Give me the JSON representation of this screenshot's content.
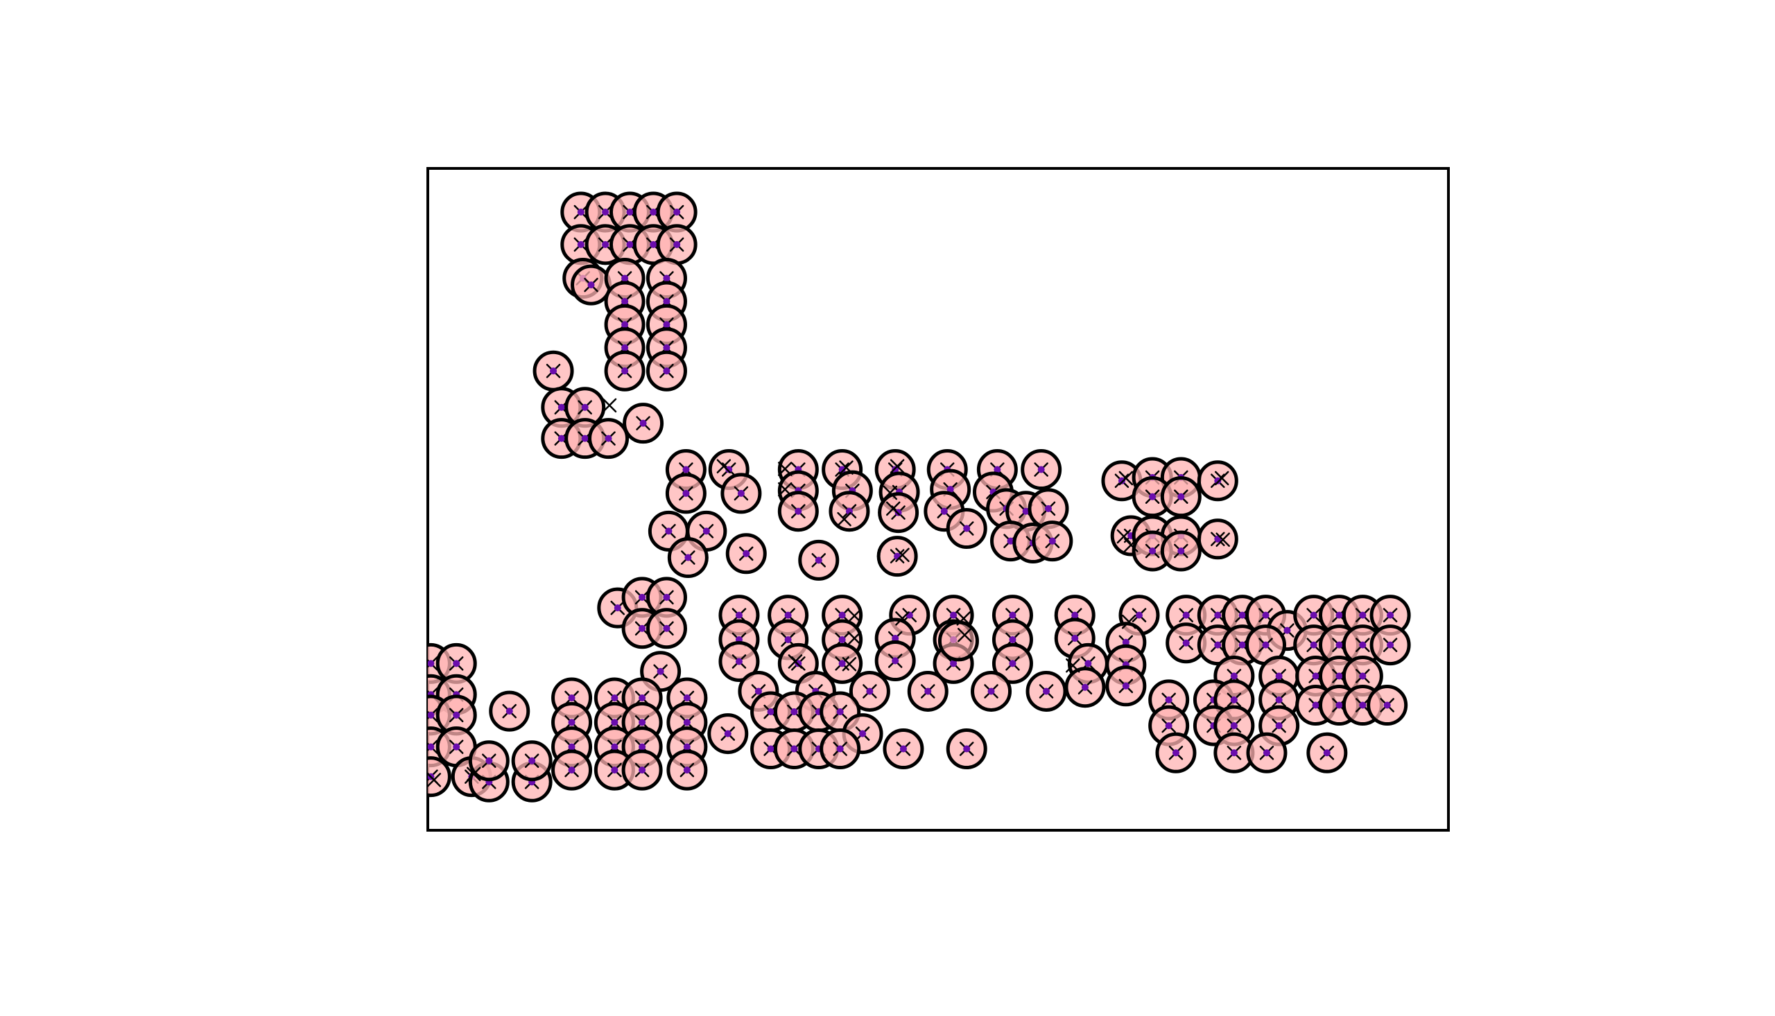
{
  "chart_data": {
    "type": "scatter",
    "title": "",
    "xlabel": "",
    "ylabel": "",
    "xlim": [
      0,
      100
    ],
    "ylim": [
      0,
      100
    ],
    "axes_visible": false,
    "grid": false,
    "legend": "none",
    "colors": {
      "circle_fill": "#ffb3b3",
      "circle_edge": "#000000",
      "cross": "#000000",
      "center": "#6a0dad",
      "frame": "#000000"
    },
    "series": [
      {
        "marker": "circle+cross",
        "points": [
          [
            15.0,
            93.4
          ],
          [
            17.4,
            93.4
          ],
          [
            19.8,
            93.4
          ],
          [
            22.1,
            93.4
          ],
          [
            24.4,
            93.4
          ],
          [
            15.0,
            88.5
          ],
          [
            17.4,
            88.5
          ],
          [
            19.8,
            88.5
          ],
          [
            22.1,
            88.5
          ],
          [
            24.4,
            88.5
          ],
          [
            15.2,
            83.4
          ],
          [
            16.0,
            82.4
          ],
          [
            19.3,
            83.4
          ],
          [
            23.4,
            83.4
          ],
          [
            19.3,
            79.9
          ],
          [
            23.4,
            79.9
          ],
          [
            19.3,
            76.4
          ],
          [
            23.4,
            76.4
          ],
          [
            19.3,
            72.9
          ],
          [
            23.4,
            72.9
          ],
          [
            19.3,
            69.4
          ],
          [
            23.4,
            69.4
          ],
          [
            12.3,
            69.4
          ],
          [
            13.1,
            63.9
          ],
          [
            15.4,
            63.9
          ],
          [
            21.1,
            61.5
          ],
          [
            13.1,
            59.2
          ],
          [
            15.4,
            59.2
          ],
          [
            17.7,
            59.2
          ],
          [
            25.3,
            54.5
          ],
          [
            29.5,
            54.5
          ],
          [
            36.3,
            54.5
          ],
          [
            40.6,
            54.5
          ],
          [
            45.8,
            54.5
          ],
          [
            50.9,
            54.5
          ],
          [
            55.8,
            54.5
          ],
          [
            60.1,
            54.5
          ],
          [
            25.3,
            50.9
          ],
          [
            30.7,
            50.9
          ],
          [
            36.3,
            51.3
          ],
          [
            41.6,
            51.3
          ],
          [
            46.2,
            51.1
          ],
          [
            51.2,
            51.5
          ],
          [
            55.4,
            51.1
          ],
          [
            36.3,
            48.2
          ],
          [
            41.3,
            48.2
          ],
          [
            46.1,
            48.0
          ],
          [
            50.6,
            48.2
          ],
          [
            56.7,
            48.6
          ],
          [
            58.6,
            48.2
          ],
          [
            60.8,
            48.6
          ],
          [
            23.6,
            45.2
          ],
          [
            27.3,
            45.2
          ],
          [
            52.8,
            45.6
          ],
          [
            57.1,
            43.7
          ],
          [
            59.3,
            43.4
          ],
          [
            61.2,
            43.7
          ],
          [
            25.5,
            41.2
          ],
          [
            31.2,
            41.8
          ],
          [
            38.3,
            40.8
          ],
          [
            46.0,
            41.4
          ],
          [
            68.0,
            52.8
          ],
          [
            71.0,
            53.3
          ],
          [
            73.8,
            53.3
          ],
          [
            77.4,
            52.8
          ],
          [
            71.0,
            50.4
          ],
          [
            73.8,
            50.4
          ],
          [
            68.9,
            44.5
          ],
          [
            71.0,
            44.5
          ],
          [
            73.8,
            44.5
          ],
          [
            77.4,
            44.0
          ],
          [
            71.0,
            42.2
          ],
          [
            73.8,
            42.2
          ],
          [
            18.6,
            33.6
          ],
          [
            21.0,
            35.2
          ],
          [
            23.4,
            35.2
          ],
          [
            21.0,
            30.5
          ],
          [
            23.4,
            30.5
          ],
          [
            30.5,
            32.5
          ],
          [
            35.3,
            32.5
          ],
          [
            40.6,
            32.5
          ],
          [
            47.2,
            32.5
          ],
          [
            51.5,
            32.5
          ],
          [
            57.3,
            32.5
          ],
          [
            63.4,
            32.5
          ],
          [
            69.7,
            32.5
          ],
          [
            30.5,
            28.8
          ],
          [
            35.3,
            28.8
          ],
          [
            40.6,
            28.8
          ],
          [
            45.8,
            29.0
          ],
          [
            51.5,
            28.8
          ],
          [
            57.3,
            28.8
          ],
          [
            63.4,
            29.0
          ],
          [
            68.4,
            28.4
          ],
          [
            30.5,
            25.5
          ],
          [
            36.3,
            25.2
          ],
          [
            40.6,
            25.2
          ],
          [
            45.8,
            25.6
          ],
          [
            51.5,
            25.2
          ],
          [
            57.3,
            25.2
          ],
          [
            64.7,
            25.2
          ],
          [
            68.4,
            25.0
          ],
          [
            22.8,
            24.0
          ],
          [
            32.4,
            21.0
          ],
          [
            38.0,
            21.0
          ],
          [
            43.3,
            21.0
          ],
          [
            49.0,
            21.0
          ],
          [
            55.2,
            21.0
          ],
          [
            60.6,
            21.0
          ],
          [
            64.4,
            21.6
          ],
          [
            68.4,
            21.8
          ],
          [
            74.3,
            32.5
          ],
          [
            77.4,
            32.5
          ],
          [
            79.8,
            32.5
          ],
          [
            82.1,
            32.5
          ],
          [
            84.2,
            30.2
          ],
          [
            86.8,
            32.5
          ],
          [
            89.3,
            32.5
          ],
          [
            91.6,
            32.5
          ],
          [
            94.3,
            32.5
          ],
          [
            74.3,
            28.3
          ],
          [
            77.4,
            28.0
          ],
          [
            79.8,
            28.0
          ],
          [
            82.1,
            28.0
          ],
          [
            86.8,
            28.0
          ],
          [
            89.3,
            28.0
          ],
          [
            91.6,
            28.0
          ],
          [
            94.3,
            28.0
          ],
          [
            79.0,
            23.3
          ],
          [
            83.4,
            23.3
          ],
          [
            87.0,
            23.3
          ],
          [
            89.3,
            23.3
          ],
          [
            91.6,
            23.3
          ],
          [
            72.6,
            19.7
          ],
          [
            77.0,
            19.7
          ],
          [
            79.0,
            19.7
          ],
          [
            83.4,
            19.7
          ],
          [
            87.0,
            18.9
          ],
          [
            89.3,
            18.9
          ],
          [
            91.6,
            18.9
          ],
          [
            94.0,
            18.9
          ],
          [
            72.6,
            15.8
          ],
          [
            77.0,
            15.8
          ],
          [
            79.0,
            15.8
          ],
          [
            83.4,
            15.8
          ],
          [
            73.3,
            11.7
          ],
          [
            79.0,
            11.7
          ],
          [
            82.2,
            11.7
          ],
          [
            88.1,
            11.7
          ],
          [
            0.3,
            25.2
          ],
          [
            2.8,
            25.2
          ],
          [
            0.3,
            20.5
          ],
          [
            2.8,
            20.5
          ],
          [
            0.3,
            17.4
          ],
          [
            2.8,
            17.4
          ],
          [
            0.3,
            12.6
          ],
          [
            2.8,
            12.6
          ],
          [
            0.3,
            8.1
          ],
          [
            4.3,
            8.1
          ],
          [
            6.0,
            7.3
          ],
          [
            10.2,
            7.3
          ],
          [
            6.0,
            10.5
          ],
          [
            10.2,
            10.5
          ],
          [
            8.0,
            18.0
          ],
          [
            14.1,
            20.0
          ],
          [
            18.3,
            20.0
          ],
          [
            21.0,
            20.0
          ],
          [
            25.4,
            20.0
          ],
          [
            14.1,
            16.3
          ],
          [
            18.3,
            16.3
          ],
          [
            21.0,
            16.3
          ],
          [
            25.4,
            16.3
          ],
          [
            14.1,
            12.6
          ],
          [
            18.3,
            12.6
          ],
          [
            21.0,
            12.6
          ],
          [
            25.4,
            12.6
          ],
          [
            14.1,
            9.1
          ],
          [
            18.3,
            9.1
          ],
          [
            21.0,
            9.1
          ],
          [
            25.4,
            9.1
          ],
          [
            29.4,
            14.6
          ],
          [
            33.6,
            17.9
          ],
          [
            35.9,
            17.9
          ],
          [
            38.3,
            17.9
          ],
          [
            40.4,
            17.9
          ],
          [
            42.6,
            14.6
          ],
          [
            33.6,
            12.3
          ],
          [
            35.9,
            12.3
          ],
          [
            38.3,
            12.3
          ],
          [
            40.4,
            12.3
          ],
          [
            46.6,
            12.3
          ],
          [
            52.8,
            12.3
          ]
        ]
      }
    ],
    "extra_crosses": [
      [
        17.8,
        64.2
      ],
      [
        29.0,
        55.0
      ],
      [
        35.0,
        54.6
      ],
      [
        41.0,
        54.8
      ],
      [
        46.0,
        55.0
      ],
      [
        35.0,
        51.5
      ],
      [
        45.3,
        51.0
      ],
      [
        40.8,
        47.0
      ],
      [
        45.6,
        48.6
      ],
      [
        46.5,
        41.6
      ],
      [
        68.4,
        53.2
      ],
      [
        77.8,
        53.2
      ],
      [
        68.2,
        44.4
      ],
      [
        68.9,
        43.1
      ],
      [
        77.9,
        43.9
      ],
      [
        41.8,
        32.4
      ],
      [
        46.5,
        32.0
      ],
      [
        52.5,
        32.0
      ],
      [
        52.6,
        29.5
      ],
      [
        41.8,
        29.0
      ],
      [
        68.7,
        31.5
      ],
      [
        36.0,
        25.5
      ],
      [
        41.3,
        25.1
      ],
      [
        63.2,
        24.9
      ],
      [
        0.6,
        7.6
      ],
      [
        4.5,
        8.5
      ]
    ],
    "extra_circles": [
      [
        52.0,
        28.6
      ]
    ]
  }
}
